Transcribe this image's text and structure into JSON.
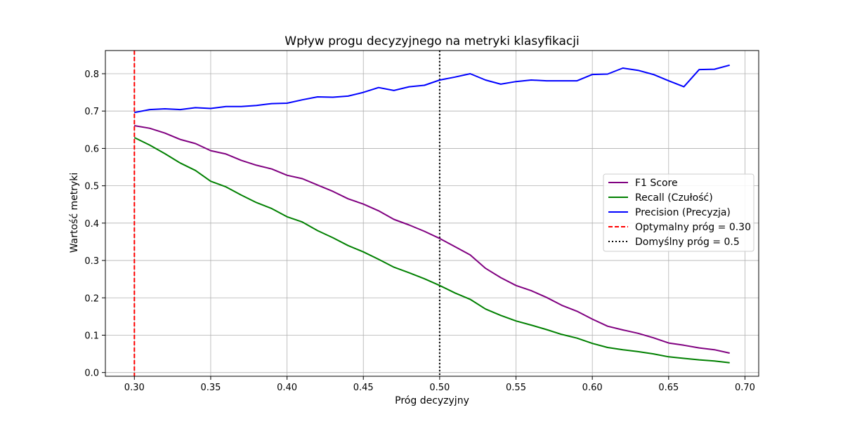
{
  "chart_data": {
    "type": "line",
    "title": "Wpływ progu decyzyjnego na metryki klasyfikacji",
    "xlabel": "Próg decyzyjny",
    "ylabel": "Wartość metryki",
    "xlim": [
      0.281,
      0.709
    ],
    "ylim": [
      -0.01,
      0.862
    ],
    "grid": true,
    "legend_position": "center-right",
    "x_ticks": [
      "0.30",
      "0.35",
      "0.40",
      "0.45",
      "0.50",
      "0.55",
      "0.60",
      "0.65",
      "0.70"
    ],
    "y_ticks": [
      "0.0",
      "0.1",
      "0.2",
      "0.3",
      "0.4",
      "0.5",
      "0.6",
      "0.7",
      "0.8"
    ],
    "x": [
      0.3,
      0.31,
      0.32,
      0.33,
      0.34,
      0.35,
      0.36,
      0.37,
      0.38,
      0.39,
      0.4,
      0.41,
      0.42,
      0.43,
      0.44,
      0.45,
      0.46,
      0.47,
      0.48,
      0.49,
      0.5,
      0.51,
      0.52,
      0.53,
      0.54,
      0.55,
      0.56,
      0.57,
      0.58,
      0.59,
      0.6,
      0.61,
      0.62,
      0.63,
      0.64,
      0.65,
      0.66,
      0.67,
      0.68,
      0.69
    ],
    "series": [
      {
        "name": "F1 Score",
        "color": "#800080",
        "values": [
          0.661,
          0.654,
          0.641,
          0.624,
          0.613,
          0.594,
          0.585,
          0.568,
          0.555,
          0.545,
          0.528,
          0.519,
          0.502,
          0.485,
          0.465,
          0.451,
          0.433,
          0.41,
          0.395,
          0.378,
          0.359,
          0.337,
          0.315,
          0.279,
          0.254,
          0.233,
          0.219,
          0.201,
          0.18,
          0.164,
          0.143,
          0.124,
          0.114,
          0.105,
          0.093,
          0.079,
          0.073,
          0.066,
          0.061,
          0.052
        ]
      },
      {
        "name": "Recall (Czułość)",
        "color": "#008000",
        "values": [
          0.629,
          0.609,
          0.586,
          0.561,
          0.541,
          0.512,
          0.497,
          0.475,
          0.455,
          0.439,
          0.417,
          0.403,
          0.38,
          0.361,
          0.34,
          0.323,
          0.303,
          0.282,
          0.267,
          0.251,
          0.233,
          0.213,
          0.196,
          0.17,
          0.153,
          0.138,
          0.127,
          0.115,
          0.102,
          0.092,
          0.078,
          0.067,
          0.061,
          0.056,
          0.05,
          0.042,
          0.038,
          0.034,
          0.031,
          0.026
        ]
      },
      {
        "name": "Precision (Precyzja)",
        "color": "#0000ff",
        "values": [
          0.696,
          0.704,
          0.706,
          0.704,
          0.709,
          0.707,
          0.712,
          0.712,
          0.715,
          0.72,
          0.721,
          0.73,
          0.738,
          0.737,
          0.74,
          0.75,
          0.763,
          0.755,
          0.765,
          0.769,
          0.783,
          0.791,
          0.8,
          0.783,
          0.772,
          0.779,
          0.783,
          0.781,
          0.781,
          0.781,
          0.798,
          0.799,
          0.815,
          0.809,
          0.798,
          0.781,
          0.765,
          0.811,
          0.812,
          0.823
        ]
      }
    ],
    "reference_lines": [
      {
        "name": "Optymalny próg = 0.30",
        "x": 0.3,
        "color": "#ff0000",
        "style": "dashed"
      },
      {
        "name": "Domyślny próg = 0.5",
        "x": 0.5,
        "color": "#000000",
        "style": "dotted"
      }
    ]
  }
}
